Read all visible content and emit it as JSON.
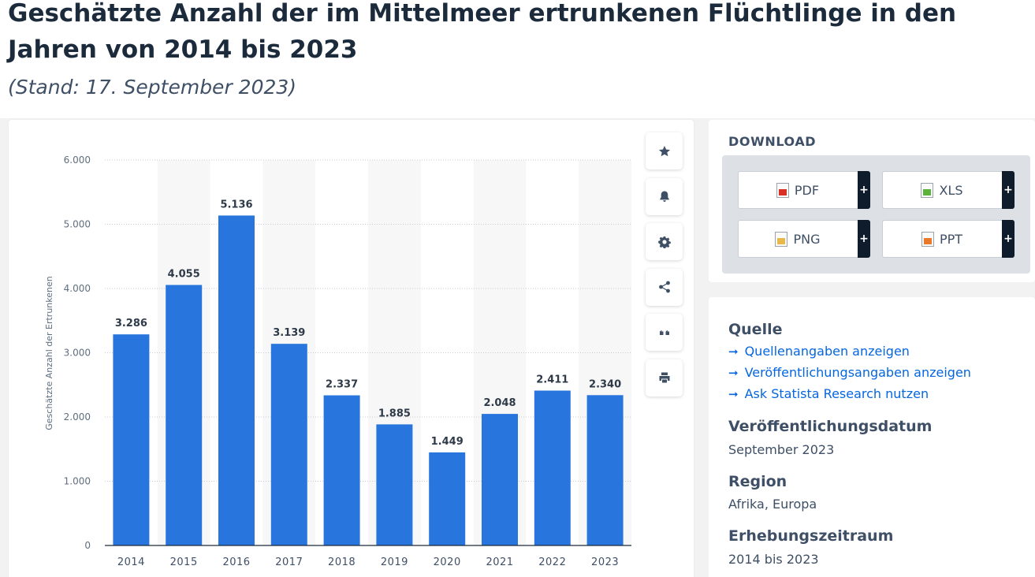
{
  "header": {
    "title": "Geschätzte Anzahl der im Mittelmeer ertrunkenen Flüchtlinge in den Jahren von 2014 bis 2023",
    "subtitle": "(Stand: 17. September 2023)"
  },
  "chart_data": {
    "type": "bar",
    "categories": [
      "2014",
      "2015",
      "2016",
      "2017",
      "2018",
      "2019",
      "2020",
      "2021",
      "2022",
      "2023"
    ],
    "values": [
      3286,
      4055,
      5136,
      3139,
      2337,
      1885,
      1449,
      2048,
      2411,
      2340
    ],
    "value_labels": [
      "3.286",
      "4.055",
      "5.136",
      "3.139",
      "2.337",
      "1.885",
      "1.449",
      "2.048",
      "2.411",
      "2.340"
    ],
    "title": "",
    "xlabel": "",
    "ylabel": "Geschätzte Anzahl der Ertrunkenen",
    "ylim": [
      0,
      6000
    ],
    "yticks": [
      0,
      1000,
      2000,
      3000,
      4000,
      5000,
      6000
    ],
    "ytick_labels": [
      "0",
      "1.000",
      "2.000",
      "3.000",
      "4.000",
      "5.000",
      "6.000"
    ],
    "grid": true,
    "bar_color": "#2876dd",
    "stripe_color": "#f7f7f7"
  },
  "tools": [
    {
      "name": "favorite-star-button",
      "icon": "star-icon"
    },
    {
      "name": "notification-bell-button",
      "icon": "bell-icon"
    },
    {
      "name": "settings-button",
      "icon": "gear-icon"
    },
    {
      "name": "share-button",
      "icon": "share-icon"
    },
    {
      "name": "cite-button",
      "icon": "quote-icon"
    },
    {
      "name": "print-button",
      "icon": "printer-icon"
    }
  ],
  "download": {
    "title": "DOWNLOAD",
    "buttons": [
      {
        "label": "PDF",
        "icon": "pdf-file-icon",
        "color": "#d93025"
      },
      {
        "label": "XLS",
        "icon": "xls-file-icon",
        "color": "#5cb33a"
      },
      {
        "label": "PNG",
        "icon": "png-file-icon",
        "color": "#e8b84a"
      },
      {
        "label": "PPT",
        "icon": "ppt-file-icon",
        "color": "#e8782a"
      }
    ],
    "plus": "+"
  },
  "info": {
    "source_heading": "Quelle",
    "links": [
      "Quellenangaben anzeigen",
      "Veröffentlichungsangaben anzeigen",
      "Ask Statista Research nutzen"
    ],
    "pubdate_heading": "Veröffentlichungsdatum",
    "pubdate": "September 2023",
    "region_heading": "Region",
    "region": "Afrika, Europa",
    "period_heading": "Erhebungszeitraum",
    "period": "2014 bis 2023"
  },
  "colors": {
    "link": "#0666e0",
    "dark": "#0e1c2c",
    "text": "#3e4f66"
  }
}
